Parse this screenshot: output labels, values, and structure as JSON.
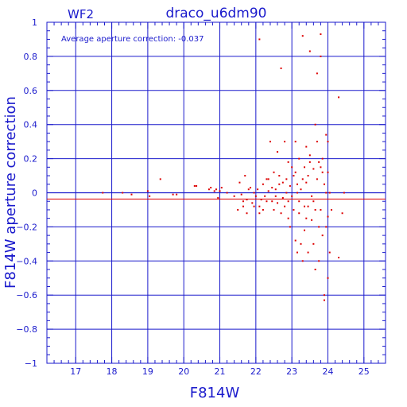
{
  "chart_data": {
    "type": "scatter",
    "title": "draco_u6dm90",
    "subtitle": "WF2",
    "xlabel": "F814W",
    "ylabel": "F814W aperture correction",
    "annotation": "Average aperture correction:  -0.037",
    "xlim": [
      16.2,
      25.6
    ],
    "ylim": [
      -1,
      1
    ],
    "x_ticks": [
      17,
      18,
      19,
      20,
      21,
      22,
      23,
      24,
      25
    ],
    "y_ticks": [
      1,
      0.8,
      0.6,
      0.4,
      0.2,
      0,
      -0.2,
      -0.4,
      -0.6,
      -0.8,
      -1
    ],
    "y_tick_labels": [
      "1",
      "0.8",
      "0.6",
      "0.4",
      "0.2",
      "0",
      "−0.2",
      "−0.4",
      "−0.6",
      "−0.8",
      "−1"
    ],
    "grid": true,
    "reference_lines": {
      "zero": 0,
      "average": -0.037
    },
    "colors": {
      "axes": "#1a1acc",
      "points": "#dd0000",
      "average_line": "#dd0000"
    },
    "points": [
      [
        17.75,
        0.0
      ],
      [
        18.3,
        0.0
      ],
      [
        18.55,
        -0.01
      ],
      [
        19.0,
        0.01
      ],
      [
        19.05,
        -0.02
      ],
      [
        19.35,
        0.08
      ],
      [
        19.7,
        -0.01
      ],
      [
        19.8,
        -0.01
      ],
      [
        20.3,
        0.04
      ],
      [
        20.35,
        0.04
      ],
      [
        20.7,
        0.02
      ],
      [
        20.75,
        0.03
      ],
      [
        20.85,
        0.01
      ],
      [
        20.9,
        0.02
      ],
      [
        20.95,
        -0.03
      ],
      [
        21.0,
        0.01
      ],
      [
        21.05,
        0.03
      ],
      [
        21.2,
        0.0
      ],
      [
        21.4,
        -0.02
      ],
      [
        21.55,
        0.06
      ],
      [
        21.6,
        -0.01
      ],
      [
        21.65,
        -0.05
      ],
      [
        21.7,
        0.1
      ],
      [
        21.75,
        -0.04
      ],
      [
        21.8,
        0.02
      ],
      [
        21.85,
        0.03
      ],
      [
        21.9,
        -0.06
      ],
      [
        21.95,
        0.0
      ],
      [
        22.0,
        -0.02
      ],
      [
        22.05,
        0.02
      ],
      [
        21.5,
        -0.1
      ],
      [
        21.65,
        -0.08
      ],
      [
        21.75,
        -0.12
      ],
      [
        21.95,
        -0.08
      ],
      [
        22.1,
        -0.08
      ],
      [
        22.1,
        0.9
      ],
      [
        22.15,
        -0.04
      ],
      [
        22.2,
        0.05
      ],
      [
        22.25,
        -0.02
      ],
      [
        22.3,
        0.08
      ],
      [
        22.35,
        0.01
      ],
      [
        22.4,
        0.3
      ],
      [
        22.45,
        -0.05
      ],
      [
        22.5,
        0.12
      ],
      [
        22.5,
        -0.1
      ],
      [
        22.55,
        0.02
      ],
      [
        22.6,
        0.24
      ],
      [
        22.6,
        -0.06
      ],
      [
        22.65,
        0.1
      ],
      [
        22.7,
        0.73
      ],
      [
        22.7,
        -0.12
      ],
      [
        22.75,
        0.06
      ],
      [
        22.8,
        0.3
      ],
      [
        22.8,
        -0.08
      ],
      [
        22.85,
        0.0
      ],
      [
        22.9,
        0.18
      ],
      [
        22.9,
        -0.15
      ],
      [
        22.95,
        0.04
      ],
      [
        22.95,
        -0.2
      ],
      [
        22.1,
        -0.12
      ],
      [
        22.2,
        -0.1
      ],
      [
        22.3,
        -0.05
      ],
      [
        22.35,
        0.08
      ],
      [
        22.45,
        0.03
      ],
      [
        22.55,
        -0.02
      ],
      [
        22.65,
        0.05
      ],
      [
        22.75,
        -0.03
      ],
      [
        22.85,
        0.08
      ],
      [
        22.9,
        -0.05
      ],
      [
        23.0,
        0.15
      ],
      [
        23.0,
        -0.02
      ],
      [
        23.05,
        0.1
      ],
      [
        23.05,
        -0.1
      ],
      [
        23.1,
        0.3
      ],
      [
        23.1,
        -0.28
      ],
      [
        23.15,
        0.05
      ],
      [
        23.15,
        -0.35
      ],
      [
        23.2,
        0.2
      ],
      [
        23.2,
        -0.12
      ],
      [
        23.25,
        0.02
      ],
      [
        23.25,
        -0.3
      ],
      [
        23.3,
        0.92
      ],
      [
        23.3,
        -0.4
      ],
      [
        23.35,
        0.15
      ],
      [
        23.35,
        -0.22
      ],
      [
        23.4,
        0.27
      ],
      [
        23.4,
        0.06
      ],
      [
        23.45,
        -0.08
      ],
      [
        23.45,
        -0.35
      ],
      [
        23.5,
        0.83
      ],
      [
        23.5,
        0.18
      ],
      [
        23.55,
        -0.02
      ],
      [
        23.55,
        -0.16
      ],
      [
        23.6,
        0.14
      ],
      [
        23.6,
        -0.3
      ],
      [
        23.65,
        0.4
      ],
      [
        23.65,
        -0.45
      ],
      [
        23.7,
        0.7
      ],
      [
        23.7,
        0.08
      ],
      [
        23.75,
        0.18
      ],
      [
        23.75,
        -0.4
      ],
      [
        23.8,
        0.93
      ],
      [
        23.8,
        0.8
      ],
      [
        23.8,
        0.15
      ],
      [
        23.8,
        -0.1
      ],
      [
        23.85,
        0.2
      ],
      [
        23.85,
        -0.25
      ],
      [
        23.9,
        0.05
      ],
      [
        23.9,
        -0.6
      ],
      [
        23.95,
        0.34
      ],
      [
        23.95,
        -0.2
      ],
      [
        24.0,
        0.3
      ],
      [
        24.0,
        0.12
      ],
      [
        24.0,
        -0.14
      ],
      [
        24.0,
        -0.5
      ],
      [
        24.05,
        0.0
      ],
      [
        24.05,
        -0.35
      ],
      [
        24.1,
        -0.1
      ],
      [
        24.3,
        0.56
      ],
      [
        24.3,
        -0.38
      ],
      [
        24.4,
        -0.12
      ],
      [
        24.45,
        0.0
      ],
      [
        23.1,
        0.12
      ],
      [
        23.2,
        -0.05
      ],
      [
        23.3,
        0.08
      ],
      [
        23.4,
        -0.15
      ],
      [
        23.5,
        0.22
      ],
      [
        23.6,
        -0.05
      ],
      [
        23.7,
        0.3
      ],
      [
        23.75,
        -0.2
      ],
      [
        23.85,
        0.12
      ],
      [
        23.95,
        0.0
      ],
      [
        23.9,
        -0.63
      ],
      [
        23.15,
        0.0
      ],
      [
        23.45,
        0.1
      ],
      [
        23.65,
        -0.1
      ],
      [
        23.35,
        -0.08
      ]
    ]
  }
}
